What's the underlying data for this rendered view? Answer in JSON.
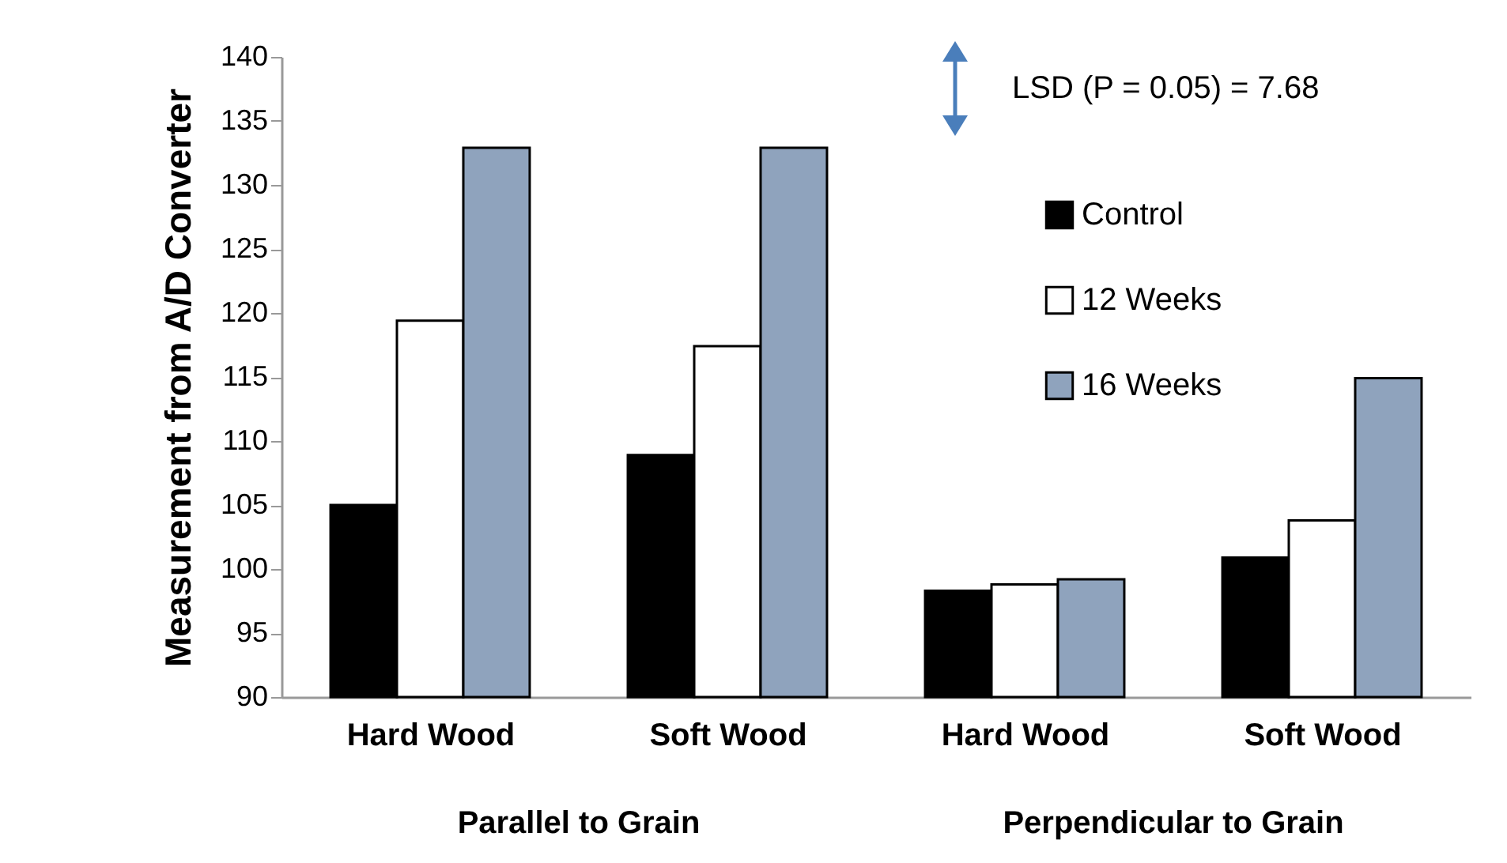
{
  "chart_data": {
    "type": "bar",
    "ylabel": "Measurement from A/D Converter",
    "categories": [
      "Hard Wood",
      "Soft Wood",
      "Hard Wood",
      "Soft Wood"
    ],
    "series": [
      {
        "name": "Control",
        "color": "#000000",
        "values": [
          105.0,
          108.9,
          98.3,
          100.9
        ]
      },
      {
        "name": "12 Weeks",
        "color": "#ffffff",
        "values": [
          119.4,
          117.4,
          98.8,
          103.8
        ]
      },
      {
        "name": "16 Weeks",
        "color": "#8fa3bd",
        "values": [
          132.9,
          132.9,
          99.2,
          114.9
        ]
      }
    ],
    "ylim": [
      90,
      140
    ],
    "yticks": [
      90,
      95,
      100,
      105,
      110,
      115,
      120,
      125,
      130,
      135,
      140
    ],
    "legend": "top right",
    "annotations": [
      "LSD (P = 0.05) = 7.68",
      "Parallel to Grain",
      "Perpendicular to Grain"
    ]
  }
}
